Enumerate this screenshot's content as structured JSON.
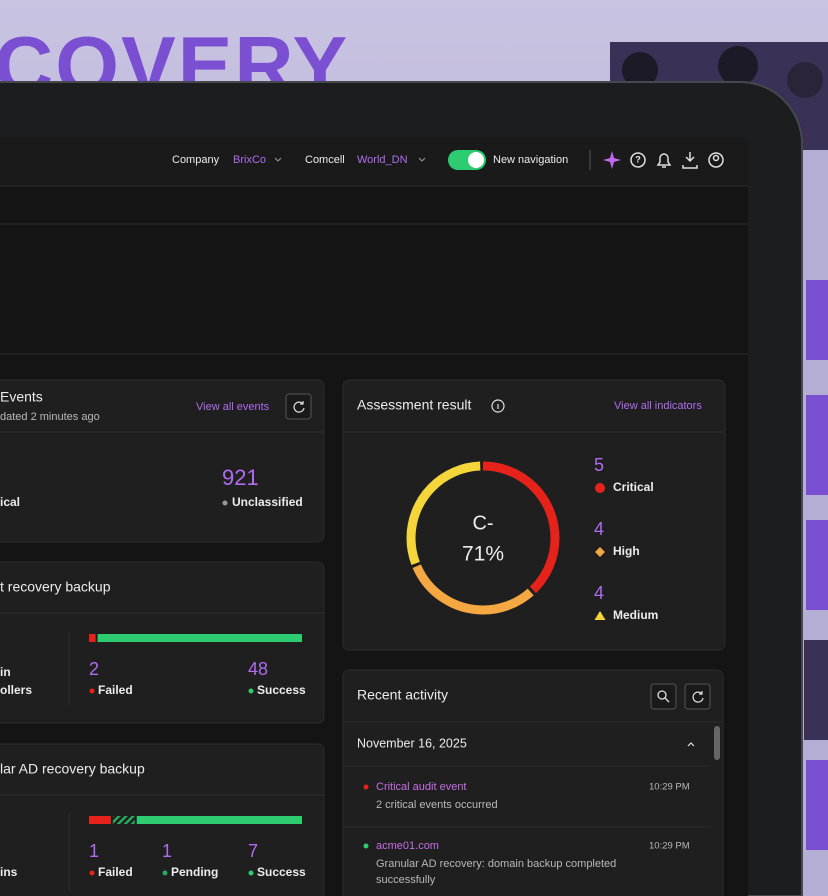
{
  "background": {
    "headline": "COVERY"
  },
  "topbar": {
    "company_label": "Company",
    "company_value": "BrixCo",
    "comcell_label": "Comcell",
    "comcell_value": "World_DN",
    "toggle_label": "New navigation"
  },
  "events": {
    "title": "Events",
    "subtitle": "dated 2 minutes ago",
    "link": "View all events",
    "left_label": "ical",
    "unclassified_value": 921,
    "unclassified_label": "Unclassified"
  },
  "assessment": {
    "title": "Assessment result",
    "link": "View all indicators",
    "grade": "C-",
    "score": "71%",
    "levels": [
      {
        "count": 5,
        "label": "Critical",
        "color": "#e5231b"
      },
      {
        "count": 4,
        "label": "High",
        "color": "#f5a742"
      },
      {
        "count": 4,
        "label": "Medium",
        "color": "#f4d63a"
      }
    ]
  },
  "backup": {
    "title": "t recovery backup",
    "left_lines": [
      "in",
      "ollers"
    ],
    "statuses": [
      {
        "count": 2,
        "label": "Failed",
        "color": "#e5231b"
      },
      {
        "count": 48,
        "label": "Success",
        "color": "#2ecc71"
      }
    ]
  },
  "granular": {
    "title": "lar AD recovery backup",
    "left_lines": [
      "ins"
    ],
    "statuses": [
      {
        "count": 1,
        "label": "Failed",
        "color": "#e5231b"
      },
      {
        "count": 1,
        "label": "Pending",
        "color": "#27a85c"
      },
      {
        "count": 7,
        "label": "Success",
        "color": "#2ecc71"
      }
    ]
  },
  "activity": {
    "title": "Recent activity",
    "date": "November 16, 2025",
    "items": [
      {
        "title": "Critical audit event",
        "time": "10:29 PM",
        "lines": [
          "2 critical events occurred"
        ],
        "color": "#e5231b"
      },
      {
        "title": "acme01.com",
        "time": "10:29 PM",
        "lines": [
          "Granular AD recovery: domain backup completed",
          "successfully"
        ],
        "color": "#2ecc71"
      }
    ]
  }
}
